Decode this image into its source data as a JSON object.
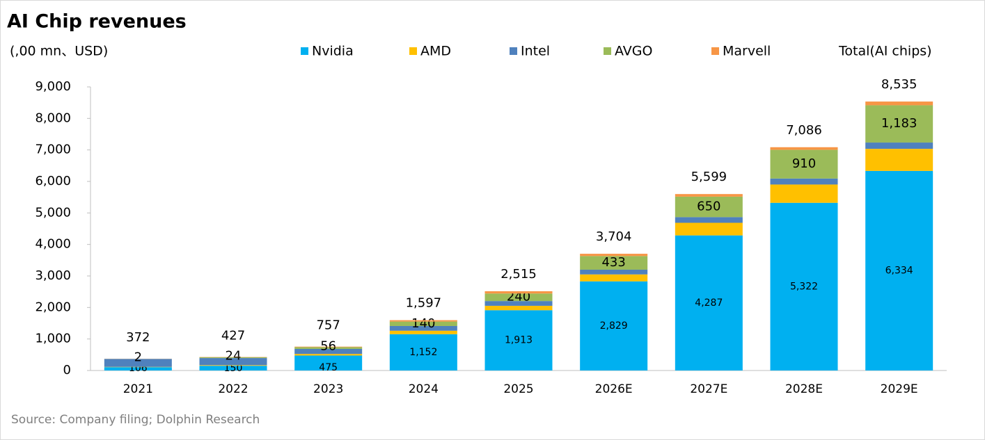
{
  "chart_data": {
    "type": "stacked_bar",
    "title": "AI Chip revenues",
    "y_label": "(,00 mn、USD)",
    "source": "Source: Company filing; Dolphin Research",
    "categories": [
      "2021",
      "2022",
      "2023",
      "2024",
      "2025",
      "2026E",
      "2027E",
      "2028E",
      "2029E"
    ],
    "series": [
      {
        "name": "Nvidia",
        "color": "#00b0f0",
        "values": [
          106,
          150,
          475,
          1152,
          1913,
          2829,
          4287,
          5322,
          6334
        ],
        "value_labels": [
          "106",
          "150",
          "475",
          "1,152",
          "1,913",
          "2,829",
          "4,287",
          "5,322",
          "6,334"
        ]
      },
      {
        "name": "AMD",
        "color": "#ffc000",
        "values": [
          10,
          20,
          50,
          110,
          140,
          220,
          400,
          580,
          700
        ]
      },
      {
        "name": "Intel",
        "color": "#4f81bd",
        "values": [
          250,
          225,
          160,
          150,
          150,
          150,
          180,
          190,
          200
        ]
      },
      {
        "name": "AVGO",
        "color": "#9bbb59",
        "values": [
          2,
          24,
          56,
          140,
          240,
          433,
          650,
          910,
          1183
        ],
        "value_labels": [
          "2",
          "24",
          "56",
          "140",
          "240",
          "433",
          "650",
          "910",
          "1,183"
        ]
      },
      {
        "name": "Marvell",
        "color": "#f79646",
        "values": [
          4,
          8,
          16,
          45,
          72,
          72,
          82,
          84,
          118
        ]
      }
    ],
    "total_name": "Total(AI chips)",
    "totals": [
      372,
      427,
      757,
      1597,
      2515,
      3704,
      5599,
      7086,
      8535
    ],
    "total_labels": [
      "372",
      "427",
      "757",
      "1,597",
      "2,515",
      "3,704",
      "5,599",
      "7,086",
      "8,535"
    ],
    "ylim": [
      0,
      9000
    ],
    "yticks": [
      0,
      {
        "value": 1000,
        "label": "1,000"
      },
      {
        "value": 2000,
        "label": "2,000"
      },
      {
        "value": 3000,
        "label": "3,000"
      },
      {
        "value": 4000,
        "label": "4,000"
      },
      {
        "value": 5000,
        "label": "5,000"
      },
      {
        "value": 6000,
        "label": "6,000"
      },
      {
        "value": 7000,
        "label": "7,000"
      },
      {
        "value": 8000,
        "label": "8,000"
      },
      {
        "value": 9000,
        "label": "9,000"
      }
    ],
    "grid": false
  }
}
